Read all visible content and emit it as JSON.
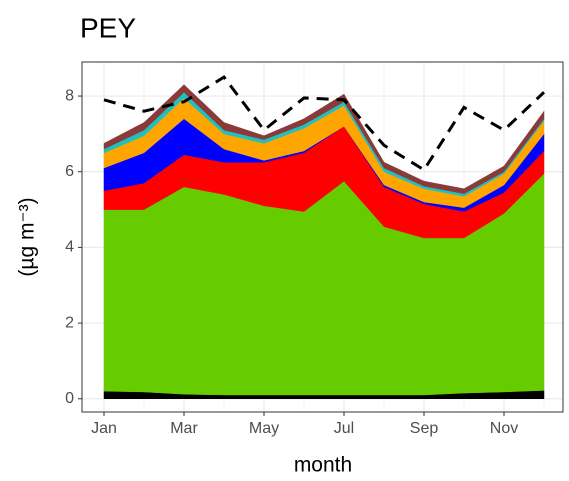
{
  "chart_data": {
    "type": "stacked_area",
    "title": "PEY",
    "x_label": "month",
    "y_label": "(µg m⁻³)",
    "categories": [
      "Jan",
      null,
      "Mar",
      null,
      "May",
      null,
      "Jul",
      null,
      "Sep",
      null,
      "Nov",
      null
    ],
    "ylim": [
      -0.35,
      8.9
    ],
    "yticks": [
      0,
      2,
      4,
      6,
      8
    ],
    "grid": true,
    "series": [
      {
        "color": "#000000",
        "values": [
          0.2,
          0.18,
          0.12,
          0.1,
          0.1,
          0.1,
          0.1,
          0.1,
          0.1,
          0.15,
          0.18,
          0.22
        ]
      },
      {
        "color": "#66cc00",
        "values": [
          4.8,
          4.82,
          5.48,
          5.3,
          5.0,
          4.85,
          5.65,
          4.45,
          4.15,
          4.1,
          4.72,
          5.73
        ]
      },
      {
        "color": "#ff0000",
        "values": [
          0.5,
          0.7,
          0.85,
          0.85,
          1.15,
          1.55,
          1.45,
          1.05,
          0.9,
          0.7,
          0.55,
          0.6
        ]
      },
      {
        "color": "#0000ff",
        "values": [
          0.6,
          0.8,
          0.95,
          0.35,
          0.05,
          0.05,
          0.0,
          0.05,
          0.05,
          0.1,
          0.2,
          0.45
        ]
      },
      {
        "color": "#ffa500",
        "values": [
          0.4,
          0.45,
          0.55,
          0.4,
          0.45,
          0.6,
          0.55,
          0.35,
          0.35,
          0.3,
          0.3,
          0.35
        ]
      },
      {
        "color": "#20c0c0",
        "values": [
          0.1,
          0.15,
          0.15,
          0.1,
          0.1,
          0.1,
          0.1,
          0.1,
          0.07,
          0.07,
          0.05,
          0.05
        ]
      },
      {
        "color": "#8b3a3a",
        "values": [
          0.15,
          0.2,
          0.2,
          0.2,
          0.1,
          0.15,
          0.2,
          0.15,
          0.13,
          0.13,
          0.15,
          0.2
        ]
      }
    ],
    "line": {
      "color": "#000000",
      "dash": true,
      "values": [
        7.9,
        7.6,
        7.85,
        8.5,
        7.1,
        7.95,
        7.9,
        6.7,
        6.05,
        7.7,
        7.1,
        8.1
      ]
    }
  }
}
